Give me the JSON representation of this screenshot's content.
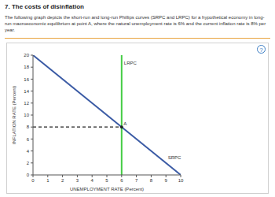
{
  "header": {
    "title": "7. The costs of disinflation",
    "text": "The following graph depicts the short-run and long-run Phillips curves (SRPC and LRPC) for a hypothetical economy in long-run macroeconomic equilibrium at point A, where the natural unemployment rate is 6% and the current inflation rate is 8% per year.",
    "help_icon": "?"
  },
  "chart_data": {
    "type": "line",
    "x_label": "UNEMPLOYMENT RATE (Percent)",
    "y_label": "INFLATION RATE (Percent)",
    "xlim": [
      0,
      10
    ],
    "xticks": [
      0,
      1,
      2,
      3,
      4,
      5,
      6,
      7,
      8,
      9,
      10
    ],
    "ylim": [
      0,
      20
    ],
    "yticks": [
      0,
      2,
      4,
      6,
      8,
      10,
      12,
      14,
      16,
      18,
      20
    ],
    "grid": false,
    "series": [
      {
        "name": "SRPC",
        "color": "#3b5ba5",
        "x": [
          0,
          10
        ],
        "values": [
          20,
          0
        ],
        "line_style": "solid"
      },
      {
        "name": "LRPC",
        "color": "#44cc44",
        "x": [
          6,
          6
        ],
        "values": [
          0,
          20
        ],
        "line_style": "solid"
      },
      {
        "color": "#222222",
        "x": [
          0,
          6
        ],
        "values": [
          8,
          8
        ],
        "line_style": "dashed"
      }
    ],
    "annotations": [
      {
        "text": "A",
        "x": 6,
        "y": 8,
        "color": "#222222"
      }
    ]
  }
}
